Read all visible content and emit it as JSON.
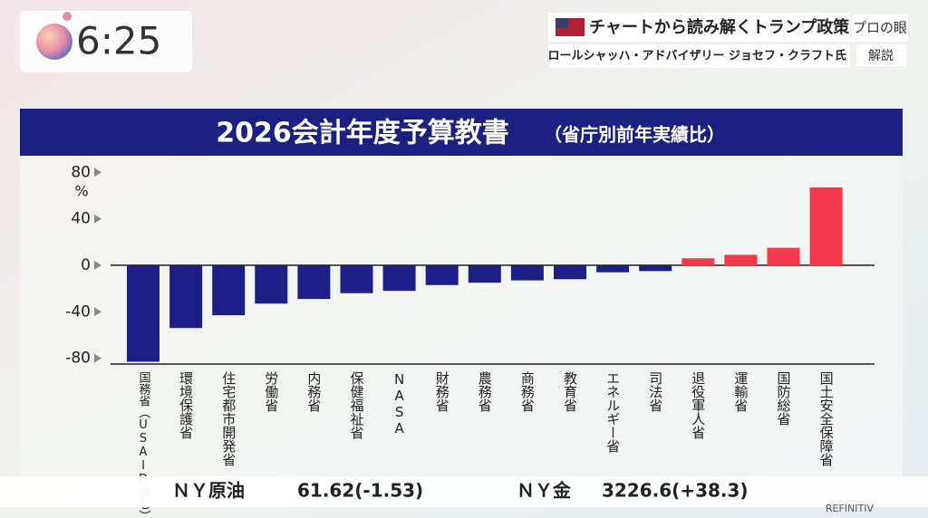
{
  "header": {
    "clock": "6:25",
    "program": "チャートから読み解くトランプ政策",
    "brand": "プロの眼",
    "guest": "ロールシャッハ・アドバイザリー ジョセフ・クラフト氏",
    "badge": "解説"
  },
  "chart_data": {
    "type": "bar",
    "title": "2026会計年度予算教書",
    "subtitle": "（省庁別前年実績比）",
    "y_unit": "%",
    "categories": [
      "国務省（USAID含む）",
      "環境保護省",
      "住宅都市開発省",
      "労働省",
      "内務省",
      "保健福祉省",
      "NASA",
      "財務省",
      "農務省",
      "商務省",
      "教育省",
      "エネルギー省",
      "司法省",
      "退役軍人省",
      "運輸省",
      "国防総省",
      "国土安全保障省"
    ],
    "values": [
      -83,
      -54,
      -43,
      -33,
      -29,
      -24,
      -22,
      -17,
      -15,
      -13,
      -12,
      -6,
      -5,
      6,
      9,
      15,
      67
    ],
    "negative_color": "#1d1f86",
    "positive_color": "#f23a4b",
    "ylim": [
      -85,
      88
    ],
    "yticks": [
      80,
      40,
      0,
      -40,
      -80
    ]
  },
  "ticker": {
    "items": [
      {
        "name": "ＮＹ原油",
        "quote": "61.62(-1.53)"
      },
      {
        "name": "ＮＹ金",
        "quote": "3226.6(+38.3)"
      }
    ],
    "source": "REFINITIV"
  }
}
